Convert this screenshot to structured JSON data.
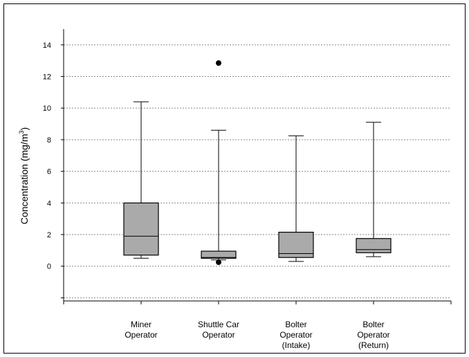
{
  "chart_data": {
    "type": "box",
    "ylabel": "Concentration (mg/m",
    "ylabel_superscript": "3",
    "ylabel_suffix": ")",
    "ylim": [
      -2.2,
      15
    ],
    "yticks": [
      0,
      2,
      4,
      6,
      8,
      10,
      12,
      14
    ],
    "grid": true,
    "categories": [
      [
        "Miner",
        "Operator"
      ],
      [
        "Shuttle Car",
        "Operator"
      ],
      [
        "Bolter",
        "Operator",
        "(Intake)"
      ],
      [
        "Bolter",
        "Operator",
        "(Return)"
      ]
    ],
    "boxes": [
      {
        "min": 0.5,
        "q1": 0.7,
        "median": 1.9,
        "q3": 4.0,
        "max": 10.4,
        "outliers": []
      },
      {
        "min": 0.4,
        "q1": 0.5,
        "median": 0.55,
        "q3": 0.95,
        "max": 8.6,
        "outliers": [
          12.85,
          0.25
        ]
      },
      {
        "min": 0.3,
        "q1": 0.55,
        "median": 0.8,
        "q3": 2.15,
        "max": 8.25,
        "outliers": []
      },
      {
        "min": 0.6,
        "q1": 0.85,
        "median": 1.05,
        "q3": 1.75,
        "max": 9.1,
        "outliers": []
      }
    ],
    "colors": {
      "box_fill": "#aaaaaa",
      "box_stroke": "#000000",
      "grid": "#888888",
      "outlier": "#000000"
    }
  }
}
